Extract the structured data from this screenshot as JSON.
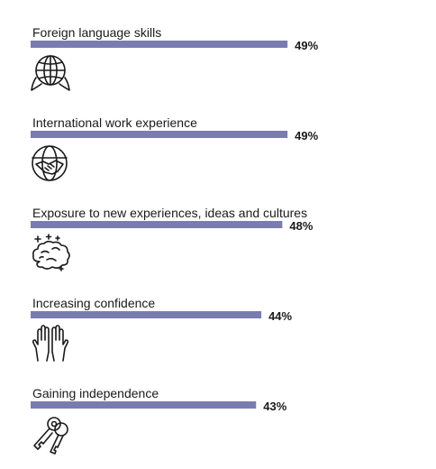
{
  "chart_data": {
    "type": "bar",
    "orientation": "horizontal",
    "categories": [
      "Foreign language skills",
      "International work experience",
      "Exposure to new experiences, ideas and cultures",
      "Increasing confidence",
      "Gaining independence"
    ],
    "values": [
      49,
      49,
      48,
      44,
      43
    ],
    "value_labels": [
      "49%",
      "49%",
      "48%",
      "44%",
      "43%"
    ],
    "icons": [
      "globe-speech-icon",
      "globe-handshake-icon",
      "brain-sparkle-icon",
      "raised-hands-icon",
      "keys-icon"
    ],
    "unit": "%",
    "xlim": [
      0,
      100
    ],
    "grid": false,
    "legend": "none",
    "bar_color": "#7a7cb0"
  }
}
